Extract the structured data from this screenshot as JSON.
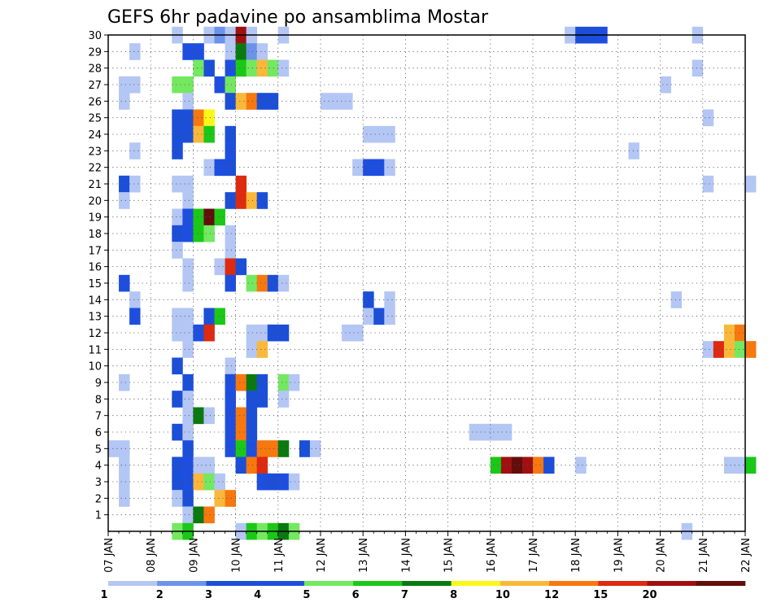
{
  "chart_data": {
    "type": "heatmap",
    "title": "GEFS 6hr padavine po ansamblima Mostar",
    "xlabel": "",
    "ylabel": "",
    "x_ticks": [
      "07 JAN",
      "08 JAN",
      "09 JAN",
      "10 JAN",
      "11 JAN",
      "12 JAN",
      "13 JAN",
      "14 JAN",
      "15 JAN",
      "16 JAN",
      "17 JAN",
      "18 JAN",
      "19 JAN",
      "20 JAN",
      "21 JAN",
      "22 JAN"
    ],
    "y_ticks": [
      1,
      2,
      3,
      4,
      5,
      6,
      7,
      8,
      9,
      10,
      11,
      12,
      13,
      14,
      15,
      16,
      17,
      18,
      19,
      20,
      21,
      22,
      23,
      24,
      25,
      26,
      27,
      28,
      29,
      30
    ],
    "member_range": [
      0,
      30
    ],
    "time_step_hours": 6,
    "grid": true,
    "legend_position": "bottom",
    "colorbar": {
      "labels": [
        "1",
        "2",
        "3",
        "4",
        "5",
        "6",
        "7",
        "8",
        "10",
        "12",
        "15",
        "20"
      ],
      "colors": [
        "#b4c6f4",
        "#6c93ea",
        "#1c4fd8",
        "#1e4ee0",
        "#74e860",
        "#1bc818",
        "#0a7a10",
        "#faf818",
        "#fab83a",
        "#f7780f",
        "#dd2a10",
        "#a01010",
        "#640d0d"
      ]
    },
    "cells_note": "cells: [member, time_index (0 = 07 JAN 00UTC, 6h steps), colour class 0-12]",
    "cells": [
      [
        30,
        6,
        0
      ],
      [
        30,
        9,
        0
      ],
      [
        30,
        10,
        1
      ],
      [
        30,
        11,
        0
      ],
      [
        30,
        12,
        11
      ],
      [
        30,
        13,
        0
      ],
      [
        30,
        16,
        0
      ],
      [
        30,
        43,
        0
      ],
      [
        30,
        44,
        2
      ],
      [
        30,
        45,
        2
      ],
      [
        30,
        46,
        3
      ],
      [
        30,
        55,
        0
      ],
      [
        29,
        2,
        0
      ],
      [
        29,
        7,
        3
      ],
      [
        29,
        8,
        3
      ],
      [
        29,
        11,
        0
      ],
      [
        29,
        12,
        6
      ],
      [
        29,
        13,
        1
      ],
      [
        29,
        14,
        0
      ],
      [
        28,
        8,
        4
      ],
      [
        28,
        9,
        2
      ],
      [
        28,
        11,
        3
      ],
      [
        28,
        12,
        5
      ],
      [
        28,
        13,
        4
      ],
      [
        28,
        14,
        8
      ],
      [
        28,
        15,
        4
      ],
      [
        28,
        16,
        0
      ],
      [
        28,
        55,
        0
      ],
      [
        27,
        1,
        0
      ],
      [
        27,
        2,
        0
      ],
      [
        27,
        6,
        4
      ],
      [
        27,
        7,
        4
      ],
      [
        27,
        10,
        3
      ],
      [
        27,
        11,
        4
      ],
      [
        27,
        52,
        0
      ],
      [
        26,
        1,
        0
      ],
      [
        26,
        7,
        0
      ],
      [
        26,
        11,
        2
      ],
      [
        26,
        12,
        8
      ],
      [
        26,
        13,
        9
      ],
      [
        26,
        14,
        2
      ],
      [
        26,
        15,
        2
      ],
      [
        26,
        20,
        0
      ],
      [
        26,
        21,
        0
      ],
      [
        26,
        22,
        0
      ],
      [
        25,
        6,
        2
      ],
      [
        25,
        7,
        2
      ],
      [
        25,
        8,
        9
      ],
      [
        25,
        9,
        7
      ],
      [
        25,
        56,
        0
      ],
      [
        24,
        6,
        2
      ],
      [
        24,
        7,
        2
      ],
      [
        24,
        8,
        8
      ],
      [
        24,
        9,
        5
      ],
      [
        24,
        11,
        2
      ],
      [
        24,
        24,
        0
      ],
      [
        24,
        25,
        0
      ],
      [
        24,
        26,
        0
      ],
      [
        23,
        2,
        0
      ],
      [
        23,
        6,
        2
      ],
      [
        23,
        11,
        3
      ],
      [
        23,
        49,
        0
      ],
      [
        22,
        9,
        0
      ],
      [
        22,
        10,
        3
      ],
      [
        22,
        11,
        2
      ],
      [
        22,
        23,
        0
      ],
      [
        22,
        24,
        3
      ],
      [
        22,
        25,
        3
      ],
      [
        22,
        26,
        0
      ],
      [
        21,
        1,
        2
      ],
      [
        21,
        2,
        0
      ],
      [
        21,
        6,
        0
      ],
      [
        21,
        7,
        0
      ],
      [
        21,
        12,
        10
      ],
      [
        21,
        56,
        0
      ],
      [
        21,
        60,
        0
      ],
      [
        20,
        1,
        0
      ],
      [
        20,
        7,
        0
      ],
      [
        20,
        11,
        2
      ],
      [
        20,
        12,
        10
      ],
      [
        20,
        13,
        8
      ],
      [
        20,
        14,
        2
      ],
      [
        19,
        6,
        0
      ],
      [
        19,
        7,
        3
      ],
      [
        19,
        8,
        5
      ],
      [
        19,
        9,
        12
      ],
      [
        19,
        10,
        5
      ],
      [
        18,
        6,
        2
      ],
      [
        18,
        7,
        3
      ],
      [
        18,
        8,
        5
      ],
      [
        18,
        9,
        4
      ],
      [
        18,
        11,
        0
      ],
      [
        17,
        6,
        0
      ],
      [
        17,
        11,
        0
      ],
      [
        16,
        7,
        0
      ],
      [
        16,
        10,
        0
      ],
      [
        16,
        11,
        10
      ],
      [
        16,
        12,
        2
      ],
      [
        15,
        1,
        3
      ],
      [
        15,
        7,
        0
      ],
      [
        15,
        11,
        3
      ],
      [
        15,
        13,
        4
      ],
      [
        15,
        14,
        9
      ],
      [
        15,
        15,
        2
      ],
      [
        15,
        16,
        0
      ],
      [
        14,
        2,
        0
      ],
      [
        14,
        24,
        2
      ],
      [
        14,
        26,
        0
      ],
      [
        14,
        53,
        0
      ],
      [
        13,
        2,
        3
      ],
      [
        13,
        6,
        0
      ],
      [
        13,
        7,
        0
      ],
      [
        13,
        9,
        2
      ],
      [
        13,
        10,
        5
      ],
      [
        13,
        24,
        0
      ],
      [
        13,
        25,
        2
      ],
      [
        13,
        26,
        0
      ],
      [
        12,
        6,
        0
      ],
      [
        12,
        7,
        0
      ],
      [
        12,
        8,
        3
      ],
      [
        12,
        9,
        10
      ],
      [
        12,
        13,
        0
      ],
      [
        12,
        14,
        0
      ],
      [
        12,
        15,
        2
      ],
      [
        12,
        16,
        2
      ],
      [
        12,
        22,
        0
      ],
      [
        12,
        23,
        0
      ],
      [
        12,
        58,
        8
      ],
      [
        12,
        59,
        9
      ],
      [
        11,
        7,
        0
      ],
      [
        11,
        13,
        0
      ],
      [
        11,
        14,
        8
      ],
      [
        11,
        56,
        0
      ],
      [
        11,
        57,
        10
      ],
      [
        11,
        58,
        8
      ],
      [
        11,
        59,
        4
      ],
      [
        11,
        60,
        9
      ],
      [
        10,
        6,
        2
      ],
      [
        10,
        11,
        0
      ],
      [
        9,
        1,
        0
      ],
      [
        9,
        7,
        2
      ],
      [
        9,
        11,
        3
      ],
      [
        9,
        12,
        9
      ],
      [
        9,
        13,
        6
      ],
      [
        9,
        14,
        2
      ],
      [
        9,
        16,
        4
      ],
      [
        9,
        17,
        0
      ],
      [
        8,
        6,
        2
      ],
      [
        8,
        7,
        0
      ],
      [
        8,
        11,
        3
      ],
      [
        8,
        13,
        2
      ],
      [
        8,
        14,
        2
      ],
      [
        8,
        16,
        0
      ],
      [
        7,
        7,
        0
      ],
      [
        7,
        8,
        6
      ],
      [
        7,
        9,
        0
      ],
      [
        7,
        11,
        3
      ],
      [
        7,
        12,
        9
      ],
      [
        7,
        13,
        2
      ],
      [
        6,
        6,
        2
      ],
      [
        6,
        7,
        0
      ],
      [
        6,
        11,
        3
      ],
      [
        6,
        12,
        9
      ],
      [
        6,
        13,
        2
      ],
      [
        6,
        34,
        0
      ],
      [
        6,
        35,
        0
      ],
      [
        6,
        36,
        0
      ],
      [
        6,
        37,
        0
      ],
      [
        5,
        0,
        0
      ],
      [
        5,
        1,
        0
      ],
      [
        5,
        7,
        2
      ],
      [
        5,
        11,
        3
      ],
      [
        5,
        12,
        5
      ],
      [
        5,
        13,
        3
      ],
      [
        5,
        14,
        9
      ],
      [
        5,
        15,
        9
      ],
      [
        5,
        16,
        6
      ],
      [
        5,
        18,
        2
      ],
      [
        5,
        19,
        0
      ],
      [
        4,
        1,
        0
      ],
      [
        4,
        6,
        2
      ],
      [
        4,
        7,
        3
      ],
      [
        4,
        8,
        0
      ],
      [
        4,
        9,
        0
      ],
      [
        4,
        12,
        2
      ],
      [
        4,
        13,
        9
      ],
      [
        4,
        14,
        10
      ],
      [
        4,
        36,
        5
      ],
      [
        4,
        37,
        11
      ],
      [
        4,
        38,
        12
      ],
      [
        4,
        39,
        11
      ],
      [
        4,
        40,
        9
      ],
      [
        4,
        41,
        2
      ],
      [
        4,
        44,
        0
      ],
      [
        4,
        58,
        0
      ],
      [
        4,
        59,
        0
      ],
      [
        4,
        60,
        5
      ],
      [
        3,
        1,
        0
      ],
      [
        3,
        6,
        2
      ],
      [
        3,
        7,
        3
      ],
      [
        3,
        8,
        8
      ],
      [
        3,
        9,
        4
      ],
      [
        3,
        10,
        0
      ],
      [
        3,
        14,
        3
      ],
      [
        3,
        15,
        2
      ],
      [
        3,
        16,
        3
      ],
      [
        3,
        17,
        0
      ],
      [
        2,
        1,
        0
      ],
      [
        2,
        6,
        0
      ],
      [
        2,
        7,
        2
      ],
      [
        2,
        10,
        8
      ],
      [
        2,
        11,
        9
      ],
      [
        1,
        7,
        0
      ],
      [
        1,
        8,
        6
      ],
      [
        1,
        9,
        9
      ],
      [
        0,
        6,
        4
      ],
      [
        0,
        7,
        5
      ],
      [
        0,
        12,
        0
      ],
      [
        0,
        13,
        5
      ],
      [
        0,
        14,
        4
      ],
      [
        0,
        15,
        5
      ],
      [
        0,
        16,
        6
      ],
      [
        0,
        17,
        4
      ],
      [
        0,
        54,
        0
      ]
    ]
  }
}
